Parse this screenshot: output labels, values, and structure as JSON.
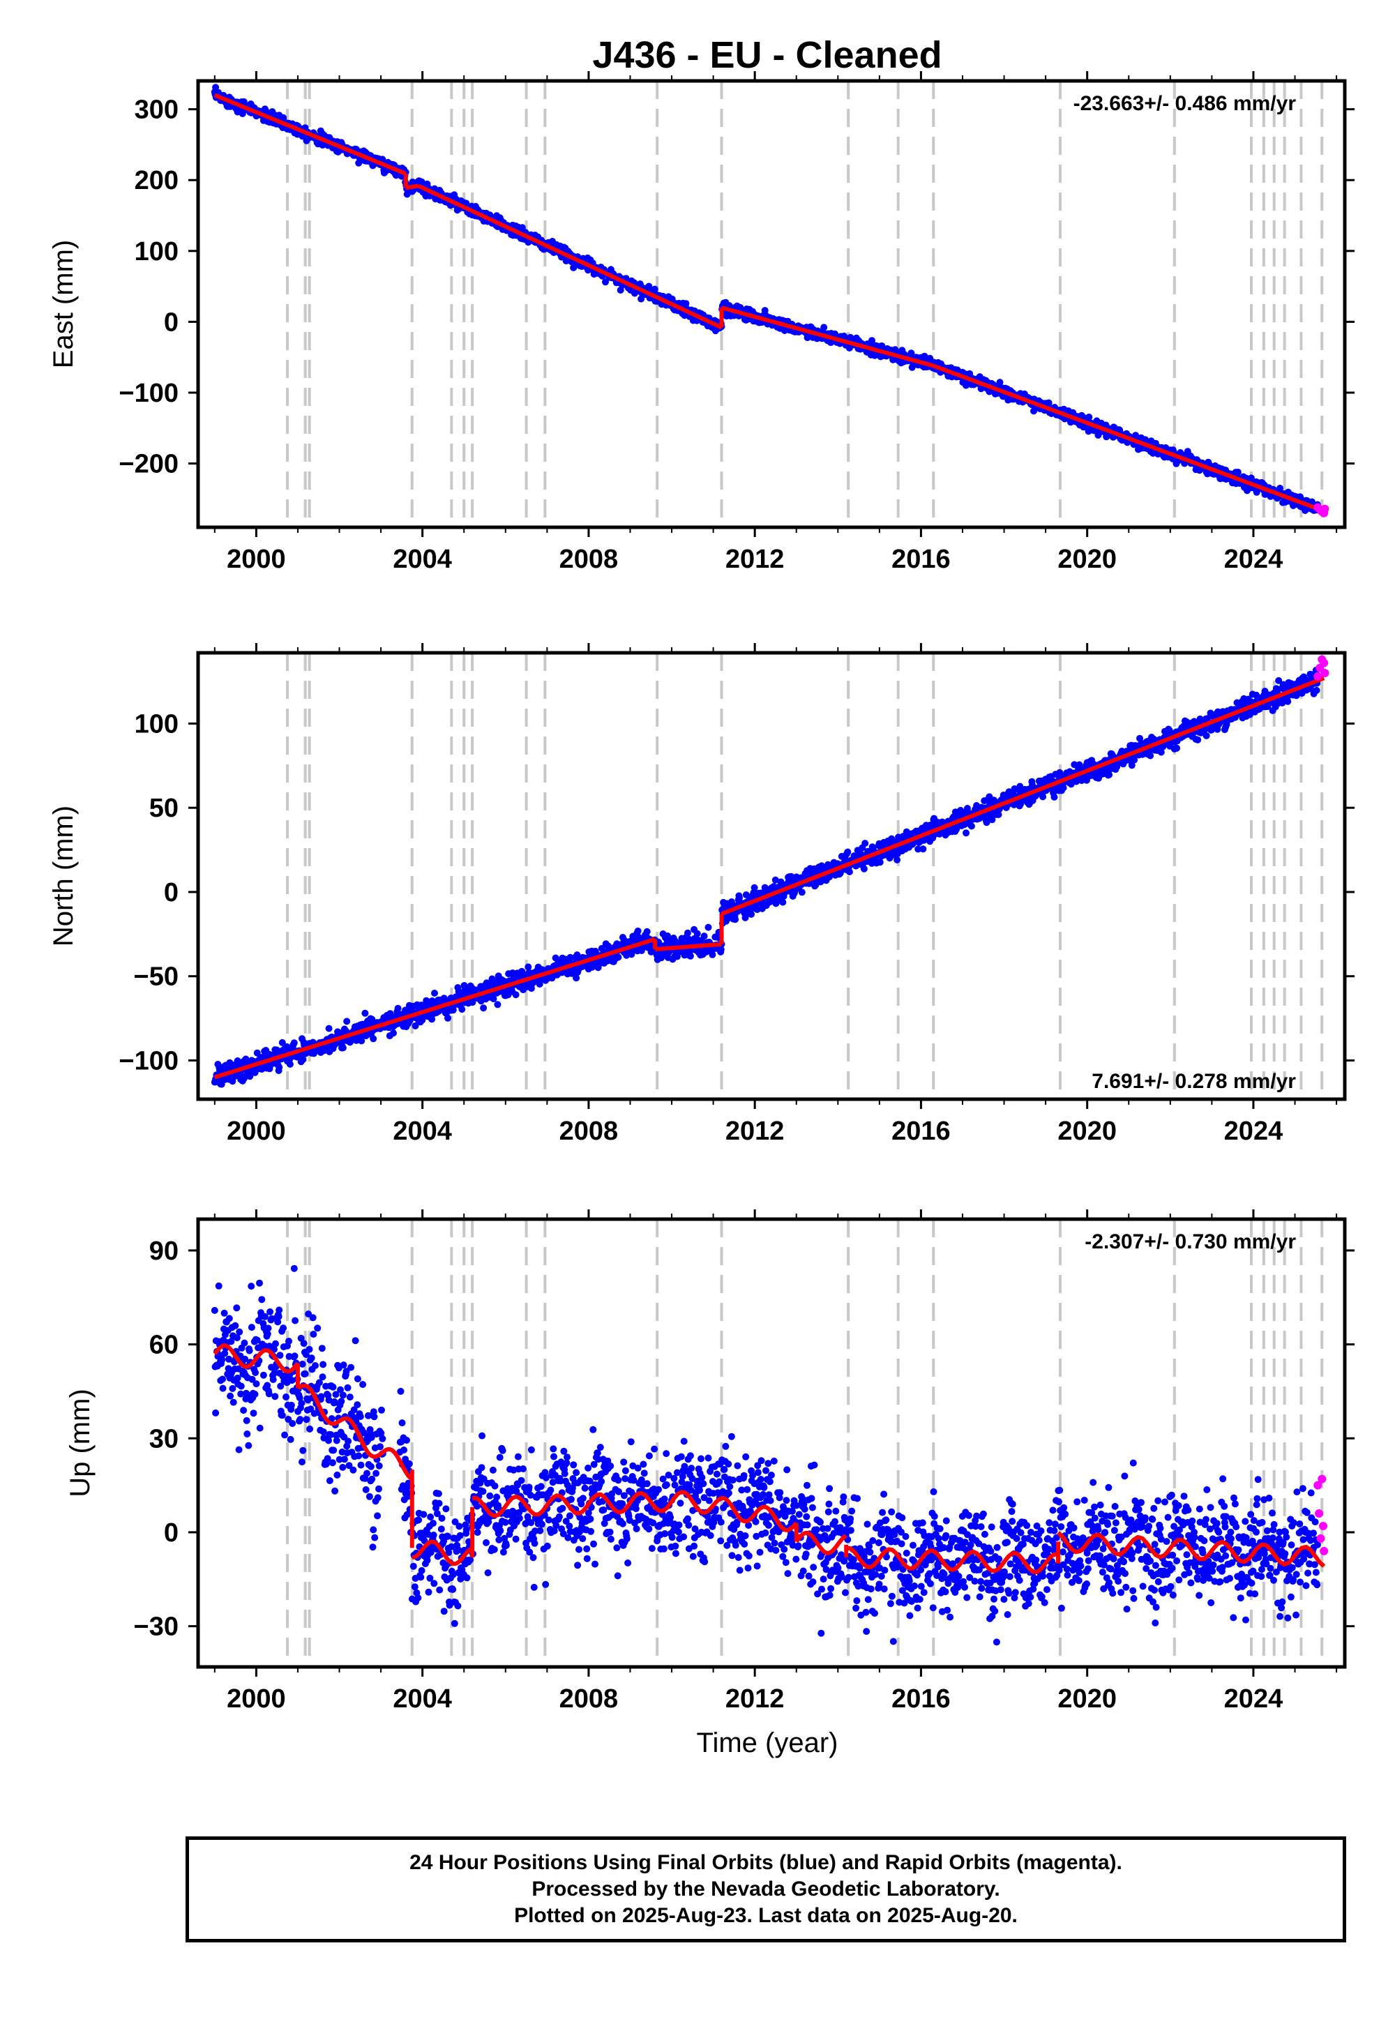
{
  "title": "J436  - EU - Cleaned",
  "xlabel_bottom": "Time (year)",
  "colors": {
    "final": "#0000ff",
    "rapid": "#ff00ff",
    "model": "#ff0000",
    "event": "#c8c8c8",
    "frame": "#000000"
  },
  "chart_data": [
    {
      "type": "scatter",
      "name": "east",
      "ylabel": "East (mm)",
      "rate": "-23.663+/- 0.486 mm/yr",
      "rate_position": "top-right",
      "xlim": [
        1998.6,
        2026.2
      ],
      "ylim": [
        -290,
        340
      ],
      "xticks": [
        2000,
        2004,
        2008,
        2012,
        2016,
        2020,
        2024
      ],
      "yticks": [
        -200,
        -100,
        0,
        100,
        200,
        300
      ],
      "ytick_labels": [
        "−200",
        "−100",
        "0",
        "100",
        "200",
        "300"
      ],
      "model_segments": [
        {
          "x": [
            1999.0,
            2003.6
          ],
          "y": [
            320,
            209
          ]
        },
        {
          "x": [
            2003.6,
            2003.9
          ],
          "y": [
            189,
            192
          ]
        },
        {
          "x": [
            2003.9,
            2011.2
          ],
          "y": [
            192,
            -8
          ]
        },
        {
          "x": [
            2011.2,
            2016.3
          ],
          "y": [
            20,
            -62
          ]
        },
        {
          "x": [
            2016.3,
            2025.7
          ],
          "y": [
            -62,
            -267
          ]
        }
      ],
      "noise": 4,
      "rapid_points": [
        [
          2025.55,
          -262
        ],
        [
          2025.6,
          -265
        ],
        [
          2025.65,
          -268
        ],
        [
          2025.7,
          -270
        ],
        [
          2025.72,
          -264
        ]
      ]
    },
    {
      "type": "scatter",
      "name": "north",
      "ylabel": "North (mm)",
      "rate": "7.691+/- 0.278 mm/yr",
      "rate_position": "bottom-right",
      "xlim": [
        1998.6,
        2026.2
      ],
      "ylim": [
        -123,
        142
      ],
      "xticks": [
        2000,
        2004,
        2008,
        2012,
        2016,
        2020,
        2024
      ],
      "yticks": [
        -100,
        -50,
        0,
        50,
        100
      ],
      "ytick_labels": [
        "−100",
        "−50",
        "0",
        "50",
        "100"
      ],
      "model_segments": [
        {
          "x": [
            1999.0,
            2009.6
          ],
          "y": [
            -110,
            -28
          ]
        },
        {
          "x": [
            2009.6,
            2011.2
          ],
          "y": [
            -34,
            -31
          ]
        },
        {
          "x": [
            2011.2,
            2025.7
          ],
          "y": [
            -13,
            127
          ]
        }
      ],
      "noise": 3,
      "rapid_points": [
        [
          2025.55,
          128
        ],
        [
          2025.6,
          133
        ],
        [
          2025.65,
          138
        ],
        [
          2025.7,
          136
        ],
        [
          2025.72,
          130
        ]
      ]
    },
    {
      "type": "scatter",
      "name": "up",
      "ylabel": "Up (mm)",
      "rate": "-2.307+/- 0.730 mm/yr",
      "rate_position": "top-right",
      "xlim": [
        1998.6,
        2026.2
      ],
      "ylim": [
        -43,
        100
      ],
      "xticks": [
        2000,
        2004,
        2008,
        2012,
        2016,
        2020,
        2024
      ],
      "yticks": [
        -30,
        0,
        30,
        60,
        90
      ],
      "ytick_labels": [
        "−30",
        "0",
        "30",
        "60",
        "90"
      ],
      "model_segments": [
        {
          "x": [
            1999.0,
            2001.0
          ],
          "y": [
            57,
            54
          ]
        },
        {
          "x": [
            2001.0,
            2003.0
          ],
          "y": [
            46,
            25
          ]
        },
        {
          "x": [
            2003.0,
            2003.75
          ],
          "y": [
            25,
            20
          ]
        },
        {
          "x": [
            2003.75,
            2005.2
          ],
          "y": [
            -5,
            -8
          ]
        },
        {
          "x": [
            2005.2,
            2010.5
          ],
          "y": [
            8,
            10
          ]
        },
        {
          "x": [
            2010.5,
            2013.0
          ],
          "y": [
            10,
            3
          ]
        },
        {
          "x": [
            2013.0,
            2014.2
          ],
          "y": [
            -3,
            -4
          ]
        },
        {
          "x": [
            2014.2,
            2019.3
          ],
          "y": [
            -8,
            -10
          ]
        },
        {
          "x": [
            2019.3,
            2025.7
          ],
          "y": [
            -3,
            -8
          ]
        }
      ],
      "noise": 8,
      "rapid_points": [
        [
          2025.55,
          15
        ],
        [
          2025.58,
          6
        ],
        [
          2025.62,
          -2
        ],
        [
          2025.65,
          17
        ],
        [
          2025.68,
          2
        ],
        [
          2025.7,
          -6
        ]
      ]
    }
  ],
  "event_lines": [
    2000.75,
    2001.18,
    2001.28,
    2003.75,
    2004.7,
    2005.0,
    2005.2,
    2006.5,
    2006.95,
    2009.65,
    2011.2,
    2014.25,
    2015.45,
    2016.3,
    2019.35,
    2022.1,
    2023.95,
    2024.25,
    2024.5,
    2024.75,
    2025.15,
    2025.65
  ],
  "footer": {
    "line1": "24 Hour Positions Using Final Orbits (blue) and Rapid Orbits (magenta).",
    "line2": "Processed by the Nevada Geodetic Laboratory.",
    "line3": "Plotted on 2025-Aug-23. Last data on 2025-Aug-20."
  }
}
